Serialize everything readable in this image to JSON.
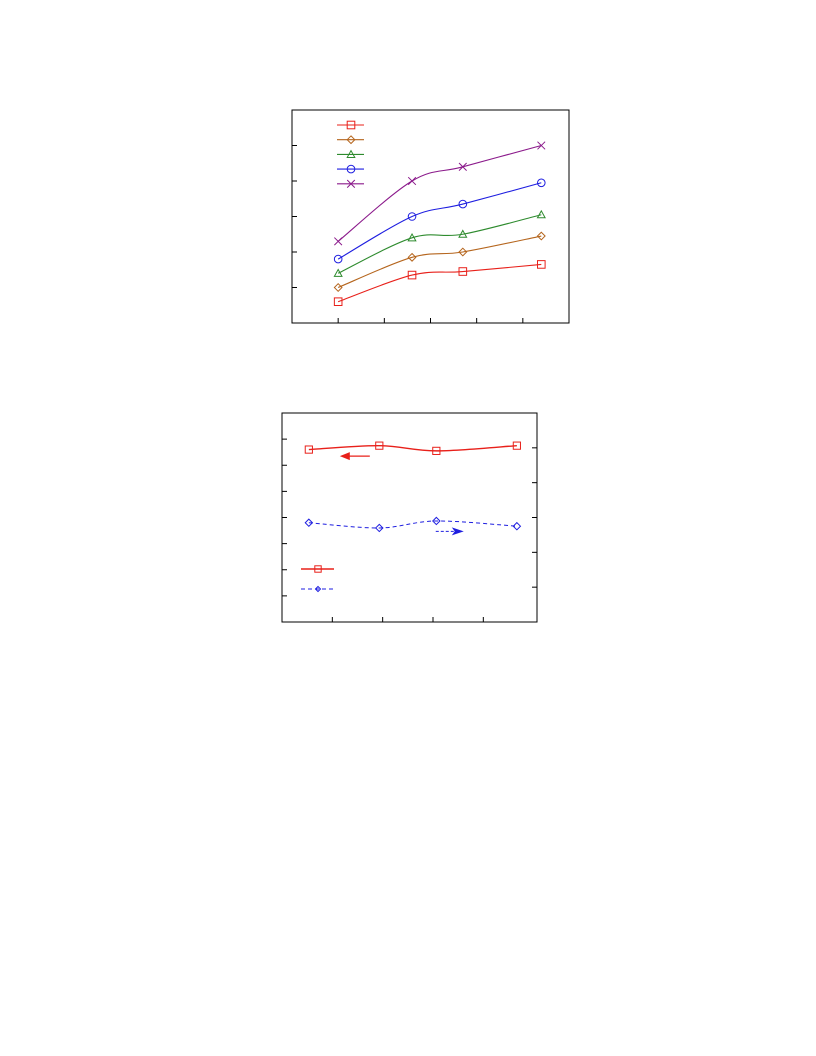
{
  "chart_data": [
    {
      "type": "line",
      "title": "",
      "xlabel": "",
      "ylabel": "",
      "x": [
        1,
        2.6,
        3.7,
        5.4
      ],
      "xlim": [
        0,
        6
      ],
      "ylim": [
        0,
        6
      ],
      "xticks": [
        1,
        2,
        3,
        4,
        5,
        6
      ],
      "yticks": [
        1,
        2,
        3,
        4,
        5
      ],
      "grid": false,
      "legend_position": "top-left",
      "series": [
        {
          "marker": "square",
          "color": "#e8201a",
          "values": [
            0.6,
            1.35,
            1.45,
            1.65
          ]
        },
        {
          "marker": "diamond",
          "color": "#b5651d",
          "values": [
            1.0,
            1.85,
            2.0,
            2.45
          ]
        },
        {
          "marker": "triangle",
          "color": "#2e8b2e",
          "values": [
            1.4,
            2.4,
            2.5,
            3.05
          ]
        },
        {
          "marker": "circle",
          "color": "#1e1ee0",
          "values": [
            1.8,
            3.0,
            3.35,
            3.95
          ]
        },
        {
          "marker": "x",
          "color": "#8b1a8b",
          "values": [
            2.3,
            4.0,
            4.4,
            5.0
          ]
        }
      ]
    },
    {
      "type": "line",
      "title": "",
      "xlabel": "",
      "ylabel": "",
      "ylabel_right": "",
      "x": [
        0.8,
        2.9,
        4.6,
        7.0
      ],
      "xlim": [
        0,
        7.6
      ],
      "xticks": [
        1.5,
        3,
        4.5,
        6
      ],
      "ylim_left": [
        0,
        8
      ],
      "yticks_left": [
        1,
        2,
        3,
        4,
        5,
        6,
        7
      ],
      "ylim_right": [
        0,
        6
      ],
      "yticks_right": [
        1,
        2,
        3,
        4,
        5
      ],
      "grid": false,
      "legend_position": "bottom-left",
      "series": [
        {
          "marker": "square",
          "color": "#e8201a",
          "dash": "solid",
          "axis": "left",
          "values": [
            6.6,
            6.75,
            6.55,
            6.75
          ]
        },
        {
          "marker": "diamond",
          "color": "#1e1ee0",
          "dash": "dashed",
          "axis": "right",
          "values": [
            2.85,
            2.7,
            2.9,
            2.75
          ]
        }
      ],
      "annotations": [
        {
          "type": "arrow",
          "direction": "left",
          "color": "#e8201a",
          "x": 2.2,
          "y": 6.35,
          "axis": "left"
        },
        {
          "type": "arrow",
          "direction": "right",
          "color": "#1e1ee0",
          "x": 5.0,
          "y": 2.6,
          "axis": "right"
        }
      ]
    }
  ]
}
